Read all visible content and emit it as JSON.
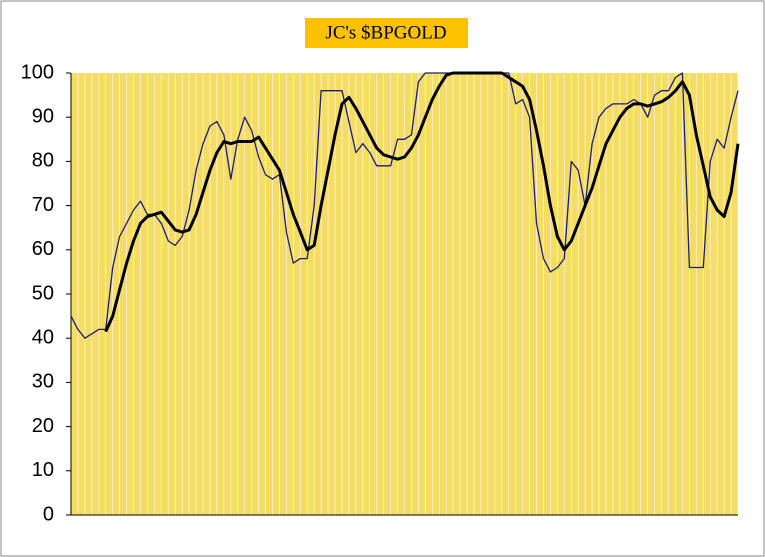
{
  "chart_data": {
    "type": "line",
    "title": "JC's $BPGOLD",
    "categories": [
      null,
      null,
      null,
      null,
      null,
      null,
      null,
      null,
      null,
      null,
      null,
      null,
      null,
      null,
      null,
      null,
      null,
      null,
      null,
      null,
      null,
      null,
      null,
      null,
      null,
      null,
      null,
      null,
      null,
      null,
      null,
      null,
      null,
      null,
      null,
      null,
      null,
      null,
      null,
      null,
      null,
      null,
      null,
      null,
      null,
      null,
      null,
      null,
      null,
      null,
      null,
      null,
      null,
      null,
      null,
      null,
      null,
      null,
      null,
      null,
      null,
      null,
      null,
      null,
      null,
      null,
      null,
      null,
      null,
      null,
      null,
      null,
      null,
      null,
      null,
      null,
      null,
      null,
      null,
      null,
      null,
      null,
      null,
      null,
      null,
      null,
      null,
      null,
      null,
      null,
      null,
      null,
      null,
      null,
      null,
      null,
      null
    ],
    "series": [
      {
        "color": "#1c1c7a",
        "width": 1.3,
        "values": [
          45,
          42,
          40,
          41,
          42,
          42,
          56,
          63,
          66,
          69,
          71,
          68,
          68,
          66,
          62,
          61,
          63,
          69,
          78,
          84,
          88,
          89,
          86,
          76,
          85,
          90,
          87,
          81,
          77,
          76,
          77,
          64,
          57,
          58,
          58,
          70,
          96,
          96,
          96,
          96,
          89,
          82,
          84,
          82,
          79,
          79,
          79,
          85,
          85,
          86,
          98,
          100,
          100,
          100,
          100,
          100,
          100,
          100,
          100,
          100,
          100,
          100,
          100,
          100,
          93,
          94,
          90,
          66,
          58,
          55,
          56,
          58,
          80,
          78,
          70,
          84,
          90,
          92,
          93,
          93,
          93,
          94,
          93,
          90,
          95,
          96,
          96,
          99,
          100,
          56,
          56,
          56,
          80,
          85,
          83,
          90,
          96
        ]
      },
      {
        "color": "#000000",
        "width": 3,
        "values": [
          null,
          null,
          null,
          null,
          null,
          41.5,
          45,
          51,
          57,
          62,
          66,
          67.5,
          68,
          68.5,
          66.5,
          64.5,
          64,
          64.5,
          68,
          73,
          78,
          82,
          84.5,
          84,
          84.5,
          84.5,
          84.5,
          85.5,
          83,
          80.5,
          78,
          73,
          68,
          64,
          60,
          61,
          70,
          78,
          86,
          93,
          94.5,
          92,
          89,
          86,
          83,
          81.5,
          81,
          80.5,
          81,
          83,
          86,
          90,
          94,
          97,
          99.5,
          100,
          100,
          100,
          100,
          100,
          100,
          100,
          100,
          99,
          98,
          97,
          94,
          87,
          79,
          70,
          63,
          60,
          62,
          66,
          70,
          74,
          79,
          84,
          87,
          90,
          92,
          93,
          93,
          92.5,
          93,
          93.5,
          94.5,
          96,
          98,
          95,
          86,
          79,
          72,
          69,
          67.5,
          73,
          84
        ]
      }
    ],
    "ylim": [
      0,
      100
    ],
    "yticks": [
      0,
      10,
      20,
      30,
      40,
      50,
      60,
      70,
      80,
      90,
      100
    ],
    "grid": true
  }
}
